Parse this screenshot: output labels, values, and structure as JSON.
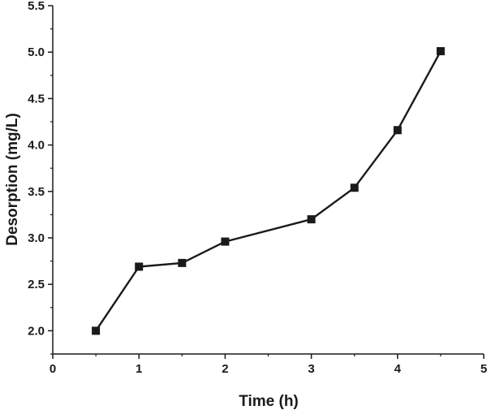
{
  "chart_data": {
    "type": "line",
    "title": "",
    "xlabel": "Time (h)",
    "ylabel": "Desorption (mg/L)",
    "xlim": [
      0,
      5
    ],
    "ylim": [
      1.75,
      5.5
    ],
    "grid": false,
    "line_color": "#1a1a1a",
    "marker": "square",
    "x_ticks": [
      {
        "value": 0,
        "label": "0"
      },
      {
        "value": 1,
        "label": "1"
      },
      {
        "value": 2,
        "label": "2"
      },
      {
        "value": 3,
        "label": "3"
      },
      {
        "value": 4,
        "label": "4"
      },
      {
        "value": 5,
        "label": "5"
      }
    ],
    "y_ticks": [
      {
        "value": 2.0,
        "label": "2.0"
      },
      {
        "value": 2.5,
        "label": "2.5"
      },
      {
        "value": 3.0,
        "label": "3.0"
      },
      {
        "value": 3.5,
        "label": "3.5"
      },
      {
        "value": 4.0,
        "label": "4.0"
      },
      {
        "value": 4.5,
        "label": "4.5"
      },
      {
        "value": 5.0,
        "label": "5.0"
      },
      {
        "value": 5.5,
        "label": "5.5"
      }
    ],
    "series": [
      {
        "x": [
          0.5,
          1.0,
          1.5,
          2.0,
          3.0,
          3.5,
          4.0,
          4.5
        ],
        "values": [
          2.0,
          2.69,
          2.73,
          2.96,
          3.2,
          3.54,
          4.16,
          5.01
        ]
      }
    ]
  }
}
